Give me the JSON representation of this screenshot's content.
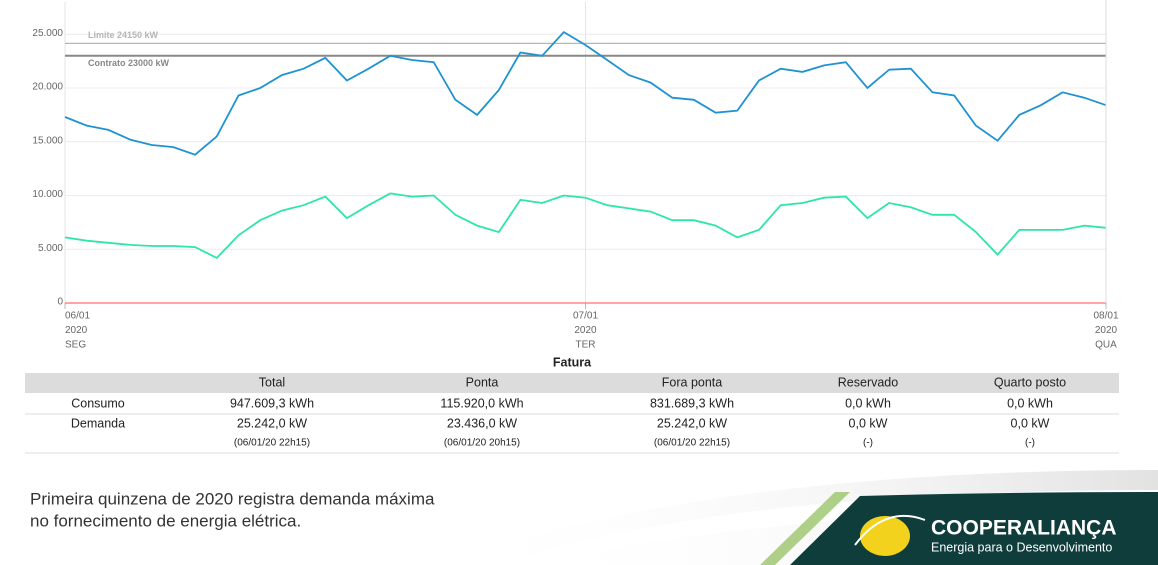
{
  "chart_data": {
    "type": "line",
    "x": [
      0,
      1,
      2,
      3,
      4,
      5,
      6,
      7,
      8,
      9,
      10,
      11,
      12,
      13,
      14,
      15,
      16,
      17,
      18,
      19,
      20,
      21,
      22,
      23,
      24,
      25,
      26,
      27,
      28,
      29,
      30,
      31,
      32,
      33,
      34,
      35,
      36,
      37,
      38,
      39,
      40,
      41,
      42,
      43,
      44,
      45,
      46,
      47,
      48
    ],
    "xlim": [
      0,
      48
    ],
    "xticks": [
      {
        "value": 0,
        "label": [
          "06/01",
          "2020",
          "SEG"
        ]
      },
      {
        "value": 24,
        "label": [
          "07/01",
          "2020",
          "TER"
        ]
      },
      {
        "value": 48,
        "label": [
          "08/01",
          "2020",
          "QUA"
        ]
      }
    ],
    "ylim": [
      0,
      28000
    ],
    "yticks": [
      0,
      {
        "value": 5000,
        "label": "5.000"
      },
      {
        "value": 10000,
        "label": "10.000"
      },
      {
        "value": 15000,
        "label": "15.000"
      },
      {
        "value": 20000,
        "label": "20.000"
      },
      {
        "value": 25000,
        "label": "25.000"
      }
    ],
    "grid": true,
    "series": [
      {
        "color": "#1f93d1",
        "values": [
          17300,
          16500,
          16100,
          15200,
          14700,
          14500,
          13800,
          15500,
          19300,
          20000,
          21200,
          21800,
          22800,
          20700,
          21800,
          23000,
          22600,
          22400,
          18900,
          17500,
          19800,
          23300,
          23000,
          25200,
          24000,
          22600,
          21200,
          20500,
          19100,
          18900,
          17700,
          17900,
          20700,
          21800,
          21500,
          22100,
          22400,
          20000,
          21700,
          21800,
          19600,
          19300,
          16500,
          15100,
          17500,
          18400,
          19600,
          19100,
          18400
        ]
      },
      {
        "color": "#2ee6a6",
        "values": [
          6100,
          5800,
          5600,
          5400,
          5300,
          5300,
          5200,
          4200,
          6300,
          7700,
          8600,
          9100,
          9900,
          7900,
          9100,
          10200,
          9900,
          10000,
          8200,
          7200,
          6600,
          9600,
          9300,
          10000,
          9800,
          9100,
          8800,
          8500,
          7700,
          7700,
          7200,
          6100,
          6800,
          9100,
          9300,
          9800,
          9900,
          7900,
          9300,
          8900,
          8200,
          8200,
          6600,
          4500,
          6800,
          6800,
          6800,
          7200,
          7000
        ]
      }
    ],
    "annotations": [
      {
        "label": "Limite 24150 kW",
        "value": 24150,
        "color": "#b5b5b5"
      },
      {
        "label": "Contrato 23000 kW",
        "value": 23000,
        "color": "#888888"
      }
    ]
  },
  "table": {
    "title": "Fatura",
    "columns": [
      "Total",
      "Ponta",
      "Fora ponta",
      "Reservado",
      "Quarto posto"
    ],
    "rows": [
      {
        "label": "Consumo",
        "cells": [
          "947.609,3 kWh",
          "115.920,0 kWh",
          "831.689,3 kWh",
          "0,0 kWh",
          "0,0 kWh"
        ]
      },
      {
        "label": "Demanda",
        "cells": [
          "25.242,0 kW",
          "23.436,0 kW",
          "25.242,0 kW",
          "0,0 kW",
          "0,0 kW"
        ],
        "notes": [
          "(06/01/20 22h15)",
          "(06/01/20 20h15)",
          "(06/01/20 22h15)",
          "(-)",
          "(-)"
        ]
      }
    ]
  },
  "caption": [
    "Primeira quinzena de 2020 registra demanda máxima",
    "no fornecimento de energia elétrica."
  ],
  "logo": {
    "name": "COOPERALIANÇA",
    "tagline": "Energia para o Desenvolvimento"
  }
}
